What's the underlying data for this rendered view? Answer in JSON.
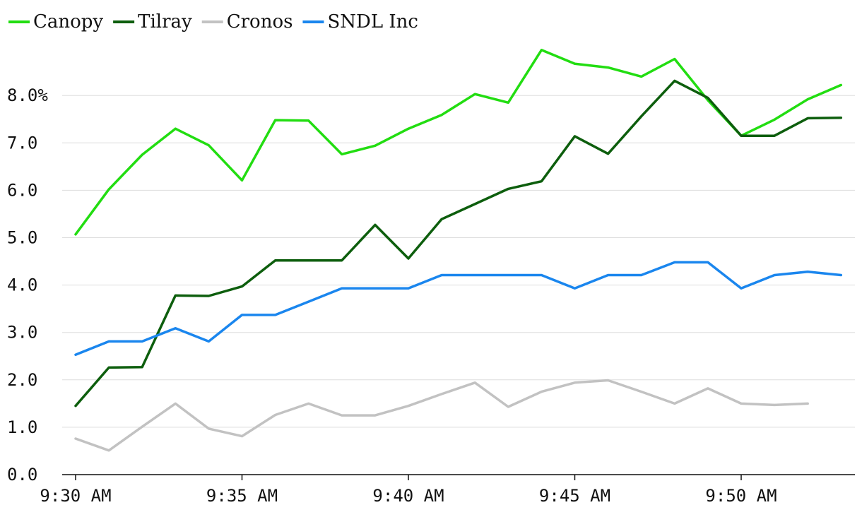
{
  "chart_data": {
    "type": "line",
    "title": "",
    "xlabel": "",
    "ylabel": "",
    "ylim": [
      0,
      9
    ],
    "x_start_minutes": 570,
    "x_step_minutes": 1,
    "x_range_minutes": [
      570,
      593.6
    ],
    "y_ticks": [
      {
        "value": 0,
        "label": "0.0"
      },
      {
        "value": 1,
        "label": "1.0"
      },
      {
        "value": 2,
        "label": "2.0"
      },
      {
        "value": 3,
        "label": "3.0"
      },
      {
        "value": 4,
        "label": "4.0"
      },
      {
        "value": 5,
        "label": "5.0"
      },
      {
        "value": 6,
        "label": "6.0"
      },
      {
        "value": 7,
        "label": "7.0"
      },
      {
        "value": 8,
        "label": "8.0%"
      }
    ],
    "x_ticks": [
      {
        "value": 570,
        "label": "9:30 AM"
      },
      {
        "value": 575,
        "label": "9:35 AM"
      },
      {
        "value": 580,
        "label": "9:40 AM"
      },
      {
        "value": 585,
        "label": "9:45 AM"
      },
      {
        "value": 590,
        "label": "9:50 AM"
      }
    ],
    "grid": true,
    "legend_position": "top-left",
    "series": [
      {
        "name": "Canopy",
        "color": "#22dd11",
        "values": [
          5.07,
          6.02,
          6.75,
          7.3,
          6.95,
          6.21,
          7.48,
          7.47,
          6.76,
          6.94,
          7.3,
          7.59,
          8.03,
          7.85,
          8.96,
          8.67,
          8.59,
          8.4,
          8.77,
          7.9,
          7.15,
          7.49,
          7.92,
          8.22
        ]
      },
      {
        "name": "Tilray",
        "color": "#0d5e0d",
        "values": [
          1.45,
          2.26,
          2.27,
          3.78,
          3.77,
          3.97,
          4.52,
          4.52,
          4.52,
          5.27,
          4.56,
          5.39,
          5.71,
          6.03,
          6.19,
          7.14,
          6.77,
          7.56,
          8.31,
          7.95,
          7.15,
          7.15,
          7.52,
          7.53
        ]
      },
      {
        "name": "Cronos",
        "color": "#c2c2c2",
        "values": [
          0.76,
          0.51,
          1.01,
          1.5,
          0.97,
          0.81,
          1.26,
          1.5,
          1.25,
          1.25,
          1.45,
          1.7,
          1.94,
          1.43,
          1.75,
          1.94,
          1.99,
          1.75,
          1.5,
          1.82,
          1.5,
          1.47,
          1.5
        ]
      },
      {
        "name": "SNDL Inc",
        "color": "#1a86ee",
        "values": [
          2.53,
          2.81,
          2.81,
          3.09,
          2.81,
          3.37,
          3.37,
          3.65,
          3.93,
          3.93,
          3.93,
          4.21,
          4.21,
          4.21,
          4.21,
          3.93,
          4.21,
          4.21,
          4.48,
          4.48,
          3.93,
          4.21,
          4.28,
          4.21
        ]
      }
    ]
  }
}
